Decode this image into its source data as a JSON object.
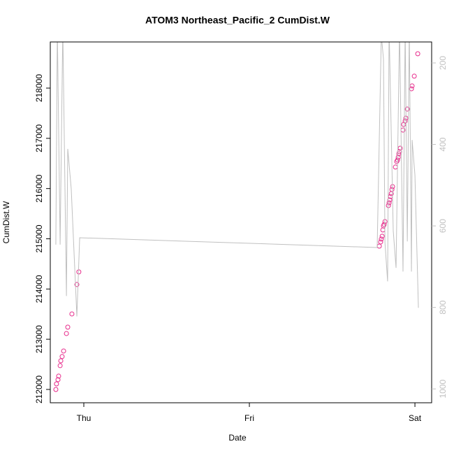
{
  "chart_data": {
    "type": "scatter",
    "title": "ATOM3 Northeast_Pacific_2 CumDist.W",
    "x_label": "Date",
    "y_label": "CumDist.W",
    "xlim": [
      -0.2025,
      2.101
    ],
    "xticks": [
      {
        "value": 0,
        "label": "Thu"
      },
      {
        "value": 1,
        "label": "Fri"
      },
      {
        "value": 2,
        "label": "Sat"
      }
    ],
    "ylim": [
      211735,
      218919
    ],
    "yticks": [
      212000,
      213000,
      214000,
      215000,
      216000,
      217000,
      218000
    ],
    "y2lim": [
      1034,
      148.5
    ],
    "y2ticks": [
      200,
      400,
      600,
      800,
      1000
    ],
    "series": [
      {
        "color": "#e7298a",
        "marker": "open-circle",
        "x": [
          -0.169,
          -0.165,
          -0.156,
          -0.152,
          -0.143,
          -0.139,
          -0.131,
          -0.122,
          -0.105,
          -0.097,
          -0.072,
          -0.042,
          -0.03,
          1.785,
          1.793,
          1.797,
          1.802,
          1.806,
          1.81,
          1.814,
          1.819,
          1.84,
          1.844,
          1.848,
          1.852,
          1.857,
          1.861,
          1.865,
          1.882,
          1.89,
          1.895,
          1.899,
          1.903,
          1.907,
          1.911,
          1.928,
          1.932,
          1.941,
          1.945,
          1.954,
          1.979,
          1.983,
          1.996,
          2.017
        ],
        "values": [
          212000,
          212111,
          212195,
          212265,
          212474,
          212571,
          212655,
          212766,
          213114,
          213240,
          213504,
          214089,
          214340,
          214854,
          214938,
          214994,
          215050,
          215175,
          215258,
          215286,
          215342,
          215662,
          215717,
          215773,
          215843,
          215898,
          215982,
          216038,
          216428,
          216539,
          216567,
          216622,
          216692,
          216734,
          216803,
          217165,
          217277,
          217346,
          217402,
          217583,
          217987,
          218043,
          218238,
          218684
        ]
      },
      {
        "color": "#c0c0c0",
        "marker": "line",
        "axis": "y2",
        "x": [
          -0.169,
          -0.16,
          -0.143,
          -0.127,
          -0.105,
          -0.097,
          -0.076,
          -0.042,
          -0.025,
          -0.025,
          1.772,
          1.797,
          1.81,
          1.819,
          1.835,
          1.844,
          1.869,
          1.886,
          1.907,
          1.928,
          1.941,
          1.954,
          1.966,
          1.979,
          1.983,
          2.0,
          2.021
        ],
        "values": [
          646,
          114,
          646,
          114,
          772,
          411,
          509,
          822,
          629,
          629,
          653,
          131,
          191,
          641,
          736,
          114,
          612,
          703,
          114,
          712,
          114,
          638,
          114,
          712,
          389,
          475,
          801
        ]
      }
    ]
  }
}
